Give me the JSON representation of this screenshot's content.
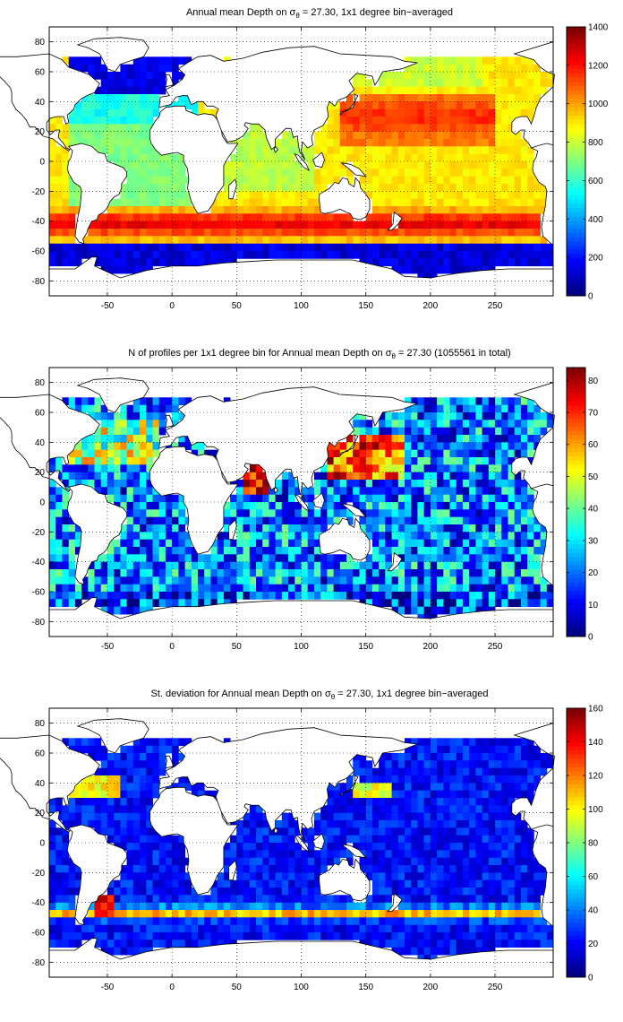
{
  "chart_data": [
    {
      "type": "heatmap",
      "title": {
        "pre": "Annual mean Depth on ",
        "sigma": "σ",
        "sub": "θ",
        "post": " = 27.30, 1x1 degree bin−averaged"
      },
      "x_ticks": [
        "-50",
        "0",
        "50",
        "100",
        "150",
        "200",
        "250"
      ],
      "x_tick_values": [
        -50,
        0,
        50,
        100,
        150,
        200,
        250
      ],
      "y_ticks": [
        "80",
        "60",
        "40",
        "20",
        "0",
        "-20",
        "-40",
        "-60",
        "-80"
      ],
      "y_tick_values": [
        80,
        60,
        40,
        20,
        0,
        -20,
        -40,
        -60,
        -80
      ],
      "xlim": [
        -95,
        295
      ],
      "ylim": [
        -90,
        90
      ],
      "grid": true,
      "colormap": "jet",
      "colorbar_ticks": [
        "0",
        "200",
        "400",
        "600",
        "800",
        "1000",
        "1200",
        "1400"
      ],
      "colorbar_values": [
        0,
        200,
        400,
        600,
        800,
        1000,
        1200,
        1400
      ],
      "clim": [
        0,
        1400
      ]
    },
    {
      "type": "heatmap",
      "title": {
        "pre": "N of profiles per 1x1 degree bin for Annual mean Depth on ",
        "sigma": "σ",
        "sub": "θ",
        "post": " = 27.30 (1055561 in total)"
      },
      "x_ticks": [
        "-50",
        "0",
        "50",
        "100",
        "150",
        "200",
        "250"
      ],
      "x_tick_values": [
        -50,
        0,
        50,
        100,
        150,
        200,
        250
      ],
      "y_ticks": [
        "80",
        "60",
        "40",
        "20",
        "0",
        "-20",
        "-40",
        "-60",
        "-80"
      ],
      "y_tick_values": [
        80,
        60,
        40,
        20,
        0,
        -20,
        -40,
        -60,
        -80
      ],
      "xlim": [
        -95,
        295
      ],
      "ylim": [
        -90,
        90
      ],
      "grid": true,
      "colormap": "jet",
      "colorbar_ticks": [
        "0",
        "10",
        "20",
        "30",
        "40",
        "50",
        "60",
        "70",
        "80"
      ],
      "colorbar_values": [
        0,
        10,
        20,
        30,
        40,
        50,
        60,
        70,
        80
      ],
      "clim": [
        0,
        84
      ]
    },
    {
      "type": "heatmap",
      "title": {
        "pre": "St. deviation for Annual mean Depth on ",
        "sigma": "σ",
        "sub": "θ",
        "post": " = 27.30, 1x1 degree bin−averaged"
      },
      "x_ticks": [
        "-50",
        "0",
        "50",
        "100",
        "150",
        "200",
        "250"
      ],
      "x_tick_values": [
        -50,
        0,
        50,
        100,
        150,
        200,
        250
      ],
      "y_ticks": [
        "80",
        "60",
        "40",
        "20",
        "0",
        "-20",
        "-40",
        "-60",
        "-80"
      ],
      "y_tick_values": [
        80,
        60,
        40,
        20,
        0,
        -20,
        -40,
        -60,
        -80
      ],
      "xlim": [
        -95,
        295
      ],
      "ylim": [
        -90,
        90
      ],
      "grid": true,
      "colormap": "jet",
      "colorbar_ticks": [
        "0",
        "20",
        "40",
        "60",
        "80",
        "100",
        "120",
        "140",
        "160"
      ],
      "colorbar_values": [
        0,
        20,
        40,
        60,
        80,
        100,
        120,
        140,
        160
      ],
      "clim": [
        0,
        160
      ]
    }
  ]
}
